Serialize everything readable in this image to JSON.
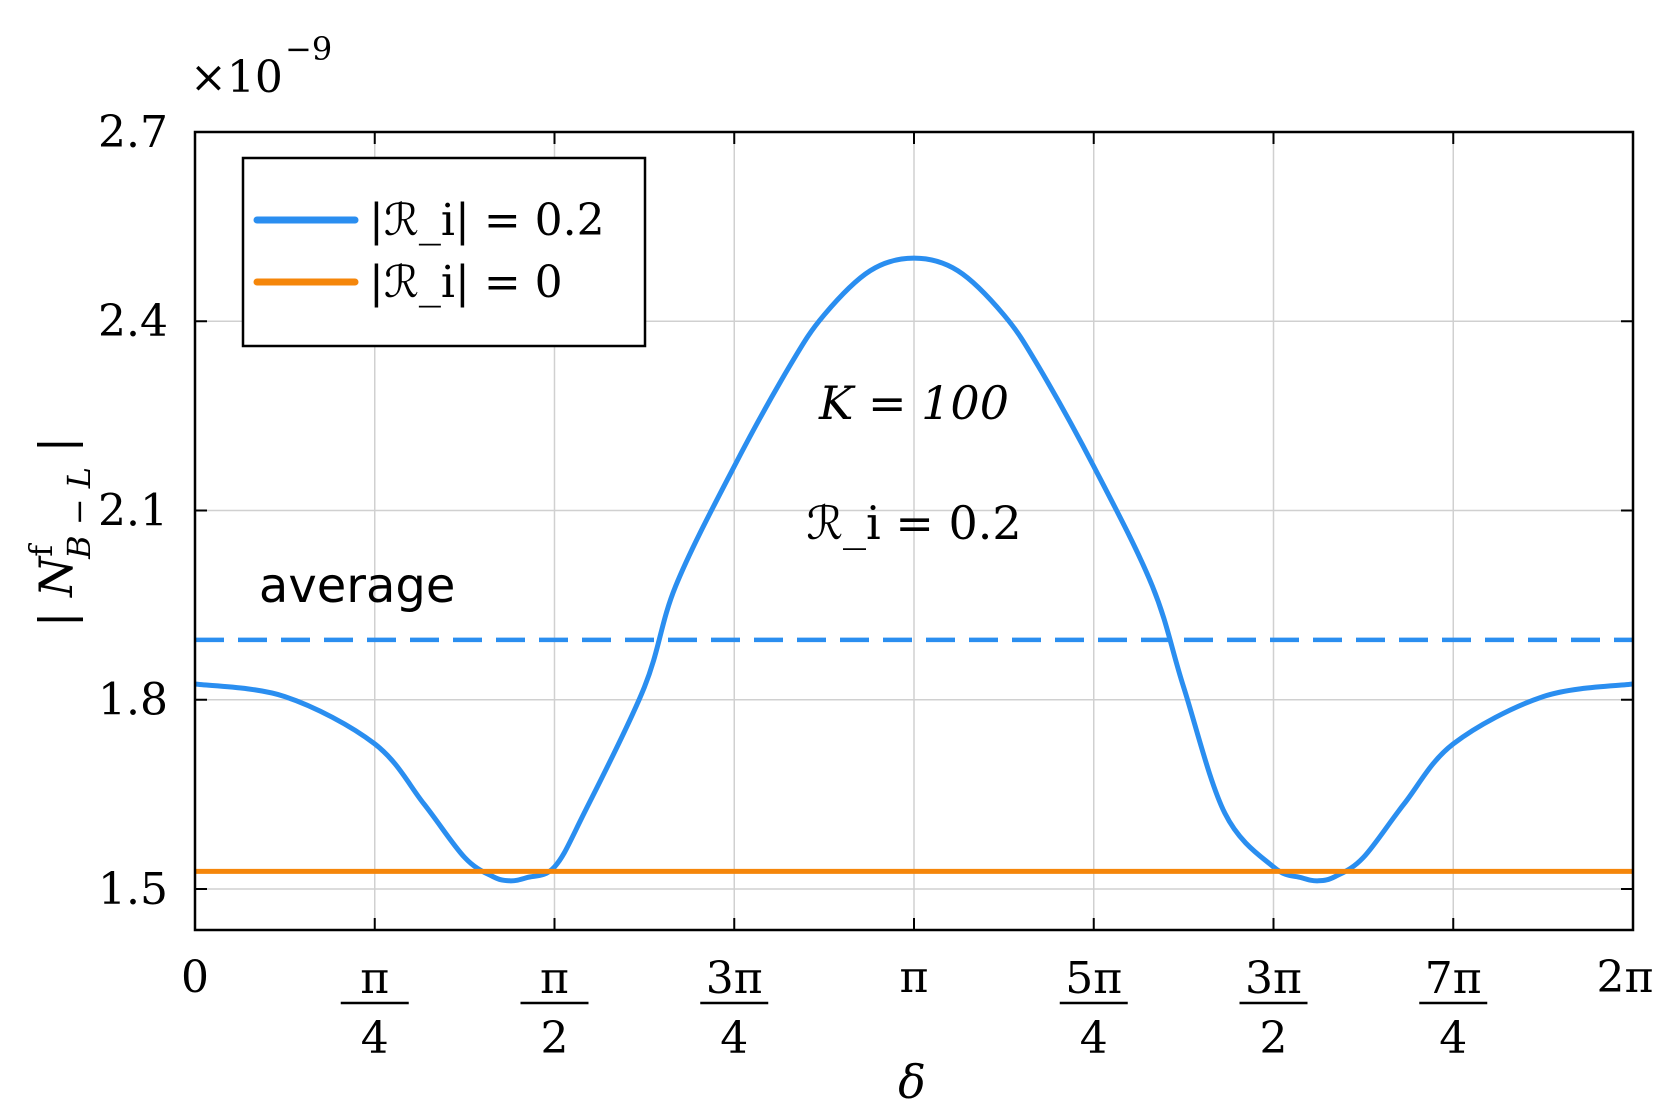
{
  "chart_data": {
    "type": "line",
    "xlabel": "δ",
    "ylabel": "|N^f_{B−L}|",
    "y_multiplier": "×10^{-9}",
    "xlim": [
      0,
      6.283185
    ],
    "ylim": [
      1.435,
      2.7
    ],
    "grid": true,
    "legend_placement": "top-left",
    "x_ticks": [
      {
        "value": 0,
        "num": "0",
        "den": ""
      },
      {
        "value": 0.785398,
        "num": "π",
        "den": "4"
      },
      {
        "value": 1.570796,
        "num": "π",
        "den": "2"
      },
      {
        "value": 2.356194,
        "num": "3π",
        "den": "4"
      },
      {
        "value": 3.141593,
        "num": "π",
        "den": ""
      },
      {
        "value": 3.926991,
        "num": "5π",
        "den": "4"
      },
      {
        "value": 4.712389,
        "num": "3π",
        "den": "2"
      },
      {
        "value": 5.497787,
        "num": "7π",
        "den": "4"
      },
      {
        "value": 6.283185,
        "num": "2π",
        "den": ""
      }
    ],
    "y_ticks": [
      {
        "value": 1.5,
        "label": "1.5"
      },
      {
        "value": 1.8,
        "label": "1.8"
      },
      {
        "value": 2.1,
        "label": "2.1"
      },
      {
        "value": 2.4,
        "label": "2.4"
      },
      {
        "value": 2.7,
        "label": "2.7"
      }
    ],
    "series": [
      {
        "name": "|ℛ_i| = 0.2",
        "color": "#2a8ef0",
        "style": "solid",
        "x": [
          0,
          0.3927,
          0.7854,
          1.0,
          1.1781,
          1.3,
          1.3744,
          1.45,
          1.5708,
          1.7,
          1.9635,
          2.1,
          2.3562,
          2.6,
          2.7489,
          2.95,
          3.1416,
          3.3332,
          3.5343,
          3.6828,
          3.927,
          4.1832,
          4.3197,
          4.5,
          4.7124,
          4.8332,
          4.9087,
          4.9832,
          5.1051,
          5.2832,
          5.4978,
          5.8905,
          6.2832
        ],
        "values": [
          1.825,
          1.805,
          1.73,
          1.635,
          1.55,
          1.52,
          1.513,
          1.518,
          1.535,
          1.62,
          1.82,
          1.98,
          2.17,
          2.33,
          2.41,
          2.48,
          2.5,
          2.48,
          2.41,
          2.33,
          2.17,
          1.98,
          1.82,
          1.62,
          1.535,
          1.518,
          1.513,
          1.52,
          1.55,
          1.635,
          1.73,
          1.805,
          1.825
        ]
      },
      {
        "name": "|ℛ_i| = 0",
        "color": "#f5860a",
        "style": "solid",
        "x": [
          0,
          6.2832
        ],
        "values": [
          1.528,
          1.528
        ]
      },
      {
        "name": "",
        "color": "#2a8ef0",
        "style": "dashed",
        "x": [
          0,
          6.2832
        ],
        "values": [
          1.895,
          1.895
        ]
      }
    ],
    "annotations": [
      {
        "text": "average",
        "x": 0.2793,
        "y": 1.955
      },
      {
        "text": "K = 100",
        "x": 3.1416,
        "y": 2.245
      },
      {
        "text": "ℛ_i = 0.2",
        "x": 3.1416,
        "y": 2.055
      }
    ]
  },
  "ui": {
    "plot_background": "#ffffff",
    "grid_color": "#d0d0d0",
    "axis_color": "#000000"
  }
}
